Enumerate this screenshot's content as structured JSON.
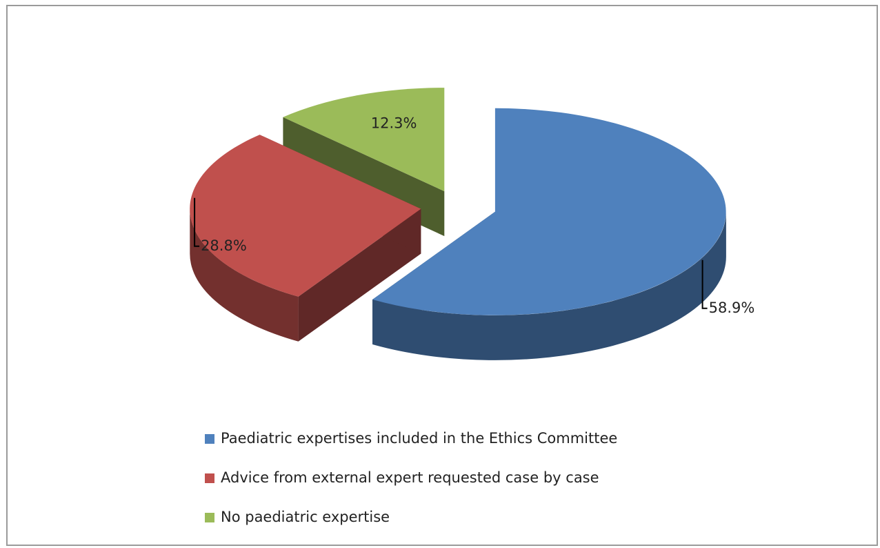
{
  "chart_data": {
    "type": "pie",
    "categories": [
      "Paediatric expertises included in the Ethics Committee",
      "Advice from external expert requested case by case",
      "No paediatric expertise"
    ],
    "values": [
      58.9,
      28.8,
      12.3
    ],
    "value_labels": [
      "58.9%",
      "28.8%",
      "12.3%"
    ],
    "colors": [
      "#4f81bd",
      "#c0504d",
      "#9bbb59"
    ],
    "legend": "bottom"
  }
}
